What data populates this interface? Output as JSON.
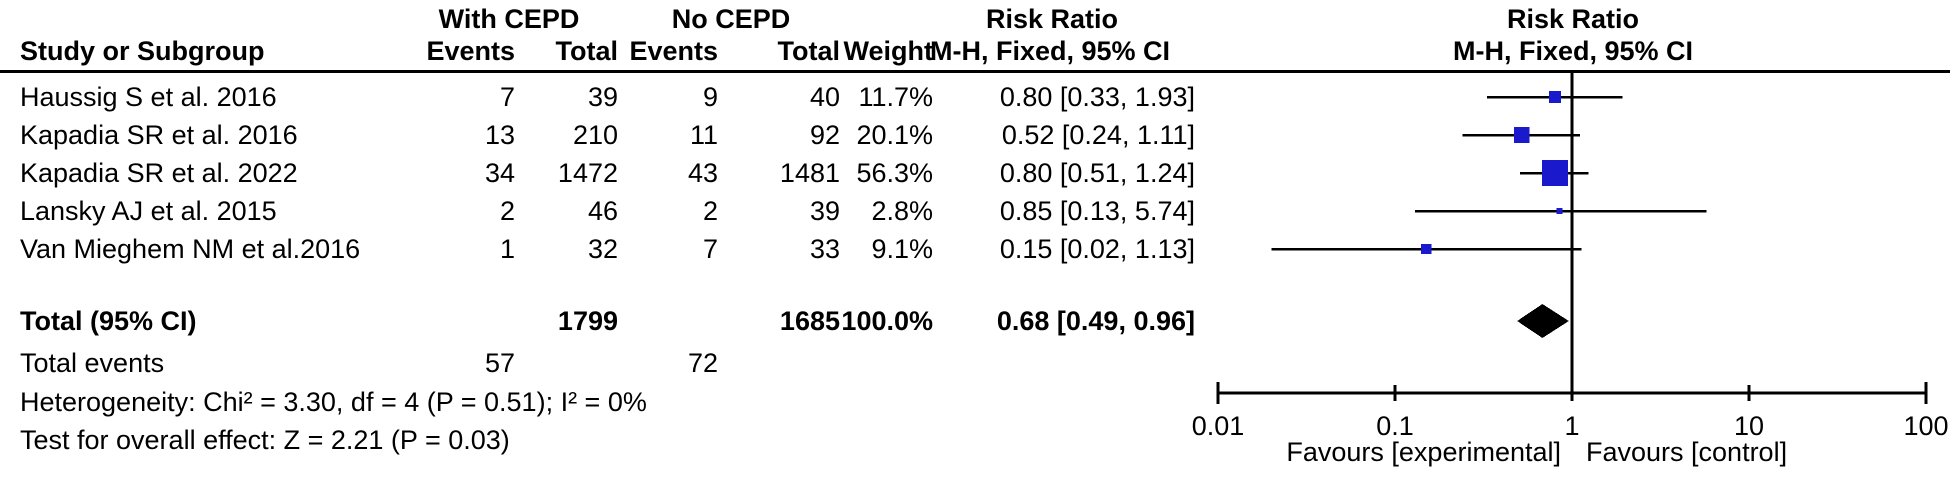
{
  "table": {
    "headers": {
      "group1": "With CEPD",
      "group2": "No CEPD",
      "risk_ratio": "Risk Ratio",
      "method": "M-H, Fixed, 95% CI",
      "study": "Study or Subgroup",
      "events": "Events",
      "total": "Total",
      "weight": "Weight"
    },
    "studies": [
      {
        "name": "Haussig S et al. 2016",
        "events1": "7",
        "total1": "39",
        "events2": "9",
        "total2": "40",
        "weight": "11.7%",
        "rr_text": "0.80 [0.33, 1.93]"
      },
      {
        "name": "Kapadia SR et al. 2016",
        "events1": "13",
        "total1": "210",
        "events2": "11",
        "total2": "92",
        "weight": "20.1%",
        "rr_text": "0.52 [0.24, 1.11]"
      },
      {
        "name": "Kapadia SR et al. 2022",
        "events1": "34",
        "total1": "1472",
        "events2": "43",
        "total2": "1481",
        "weight": "56.3%",
        "rr_text": "0.80 [0.51, 1.24]"
      },
      {
        "name": "Lansky AJ et al. 2015",
        "events1": "2",
        "total1": "46",
        "events2": "2",
        "total2": "39",
        "weight": "2.8%",
        "rr_text": "0.85 [0.13, 5.74]"
      },
      {
        "name": "Van Mieghem NM et al.2016",
        "events1": "1",
        "total1": "32",
        "events2": "7",
        "total2": "33",
        "weight": "9.1%",
        "rr_text": "0.15 [0.02, 1.13]"
      }
    ],
    "total_row": {
      "label": "Total (95% CI)",
      "total1": "1799",
      "total2": "1685",
      "weight": "100.0%",
      "rr_text": "0.68 [0.49, 0.96]"
    },
    "total_events_row": {
      "label": "Total events",
      "events1": "57",
      "events2": "72"
    },
    "heterogeneity": "Heterogeneity: Chi² = 3.30, df = 4 (P = 0.51); I² = 0%",
    "overall_effect": "Test for overall effect: Z = 2.21 (P = 0.03)"
  },
  "plot": {
    "header_line1": "Risk Ratio",
    "header_line2": "M-H, Fixed, 95% CI",
    "favours_left": "Favours [experimental]",
    "favours_right": "Favours [control]",
    "marker_color": "#1a1acc",
    "diamond_color": "#000000",
    "line_color": "#000000"
  },
  "chart_data": {
    "type": "forest",
    "x_scale": "log10",
    "xlim": [
      0.01,
      100
    ],
    "axis_ticks": [
      "0.01",
      "0.1",
      "1",
      "10",
      "100"
    ],
    "no_effect_line": 1,
    "studies": [
      {
        "name": "Haussig S et al. 2016",
        "rr": 0.8,
        "ci_low": 0.33,
        "ci_high": 1.93,
        "weight_pct": 11.7
      },
      {
        "name": "Kapadia SR et al. 2016",
        "rr": 0.52,
        "ci_low": 0.24,
        "ci_high": 1.11,
        "weight_pct": 20.1
      },
      {
        "name": "Kapadia SR et al. 2022",
        "rr": 0.8,
        "ci_low": 0.51,
        "ci_high": 1.24,
        "weight_pct": 56.3
      },
      {
        "name": "Lansky AJ et al. 2015",
        "rr": 0.85,
        "ci_low": 0.13,
        "ci_high": 5.74,
        "weight_pct": 2.8
      },
      {
        "name": "Van Mieghem NM et al.2016",
        "rr": 0.15,
        "ci_low": 0.02,
        "ci_high": 1.13,
        "weight_pct": 9.1
      }
    ],
    "total": {
      "rr": 0.68,
      "ci_low": 0.49,
      "ci_high": 0.96
    }
  }
}
